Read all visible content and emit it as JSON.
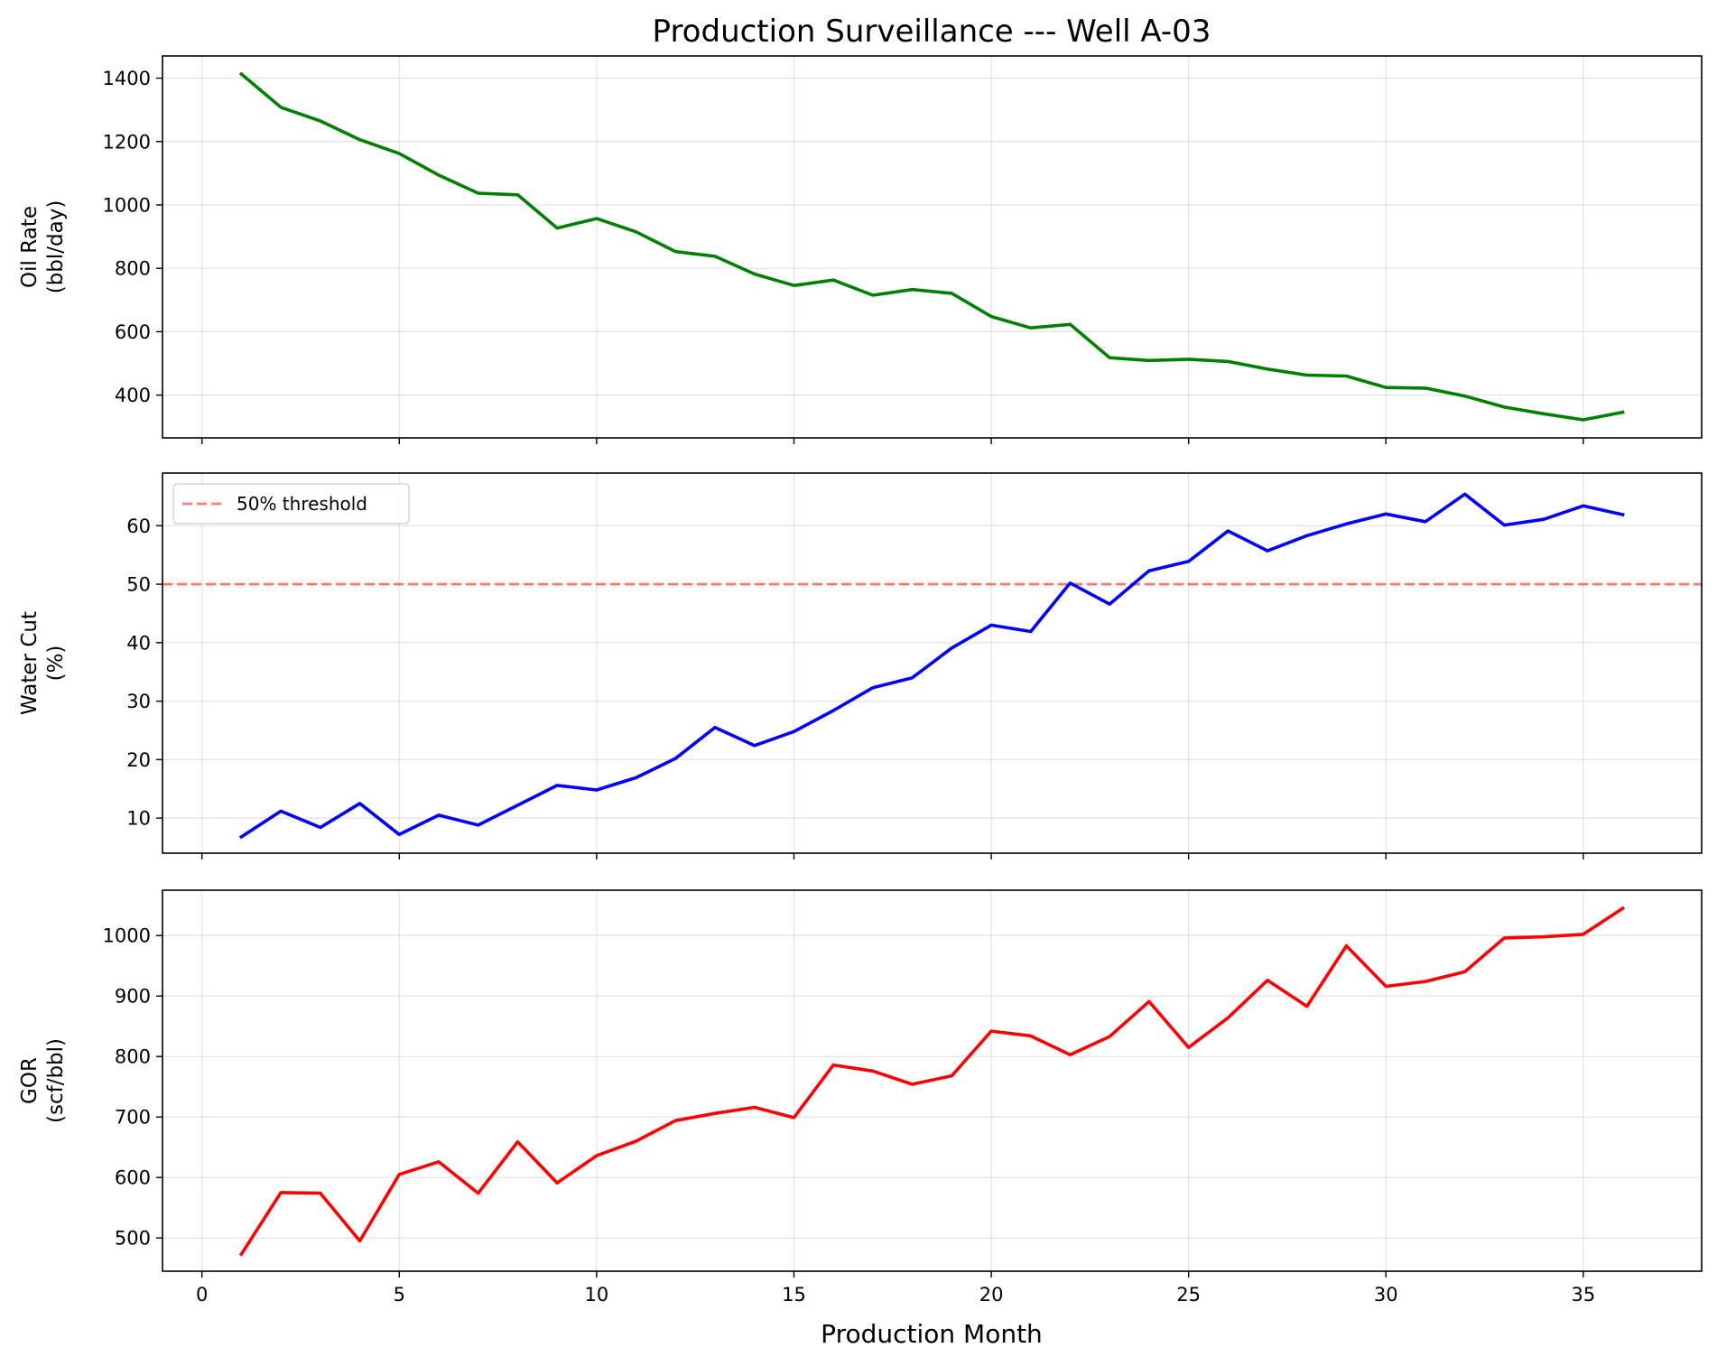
{
  "chart_data": {
    "type": "line",
    "title": "Production Surveillance --- Well A-03",
    "xlabel": "Production Month",
    "x": [
      1,
      2,
      3,
      4,
      5,
      6,
      7,
      8,
      9,
      10,
      11,
      12,
      13,
      14,
      15,
      16,
      17,
      18,
      19,
      20,
      21,
      22,
      23,
      24,
      25,
      26,
      27,
      28,
      29,
      30,
      31,
      32,
      33,
      34,
      35,
      36
    ],
    "xticks": [
      "0",
      "5",
      "10",
      "15",
      "20",
      "25",
      "30",
      "35"
    ],
    "xlim": [
      -1.0,
      38.0
    ],
    "grid": true,
    "subplots": [
      {
        "id": "oil",
        "ylabel_line1": "Oil Rate",
        "ylabel_line2": "(bbl/day)",
        "color": "#008000",
        "ylim": [
          265,
          1470
        ],
        "yticks": [
          "400",
          "600",
          "800",
          "1000",
          "1200",
          "1400"
        ],
        "values": [
          1413,
          1308,
          1265,
          1206,
          1162,
          1094,
          1037,
          1032,
          927,
          957,
          915,
          853,
          838,
          782,
          746,
          763,
          715,
          733,
          721,
          648,
          612,
          623,
          518,
          509,
          513,
          506,
          482,
          463,
          460,
          424,
          422,
          397,
          362,
          341,
          322,
          346
        ]
      },
      {
        "id": "water",
        "ylabel_line1": "Water Cut",
        "ylabel_line2": "(%)",
        "color": "#0000ff",
        "ylim": [
          4,
          69
        ],
        "yticks": [
          "10",
          "20",
          "30",
          "40",
          "50",
          "60"
        ],
        "values": [
          6.8,
          11.2,
          8.4,
          12.5,
          7.2,
          10.5,
          8.8,
          12.2,
          15.6,
          14.8,
          16.9,
          20.2,
          25.5,
          22.4,
          24.8,
          28.4,
          32.3,
          34.0,
          39.1,
          43.0,
          41.9,
          50.2,
          46.6,
          52.3,
          53.9,
          59.1,
          55.7,
          58.3,
          60.3,
          62.0,
          60.7,
          65.4,
          60.1,
          61.1,
          63.4,
          61.9
        ],
        "threshold": {
          "value": 50,
          "label": "50% threshold",
          "color": "#ff0000"
        }
      },
      {
        "id": "gor",
        "ylabel_line1": "GOR",
        "ylabel_line2": "(scf/bbl)",
        "color": "#ff0000",
        "ylim": [
          445,
          1075
        ],
        "yticks": [
          "500",
          "600",
          "700",
          "800",
          "900",
          "1000"
        ],
        "values": [
          473,
          575,
          574,
          495,
          605,
          626,
          574,
          659,
          591,
          636,
          660,
          694,
          706,
          716,
          699,
          786,
          776,
          754,
          768,
          842,
          834,
          803,
          833,
          891,
          815,
          864,
          926,
          883,
          983,
          916,
          924,
          940,
          996,
          998,
          1002,
          1045
        ]
      }
    ]
  }
}
